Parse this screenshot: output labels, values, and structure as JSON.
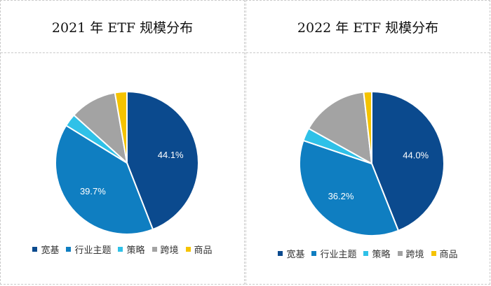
{
  "colors": {
    "宽基": "#0b4a8e",
    "行业主题": "#0f7ec1",
    "策略": "#2fc1e8",
    "跨境": "#a3a3a3",
    "商品": "#f5c300"
  },
  "chart_data": [
    {
      "type": "pie",
      "title": "2021 年 ETF 规模分布",
      "categories": [
        "宽基",
        "行业主题",
        "策略",
        "跨境",
        "商品"
      ],
      "values": [
        44.1,
        39.7,
        2.9,
        10.6,
        2.7
      ],
      "labels": [
        "44.1%",
        "39.7%",
        "",
        "",
        ""
      ],
      "legend": "bottom"
    },
    {
      "type": "pie",
      "title": "2022 年 ETF 规模分布",
      "categories": [
        "宽基",
        "行业主题",
        "策略",
        "跨境",
        "商品"
      ],
      "values": [
        44.0,
        36.2,
        2.9,
        15.1,
        1.8
      ],
      "labels": [
        "44.0%",
        "36.2%",
        "",
        "",
        ""
      ],
      "legend": "bottom"
    }
  ]
}
